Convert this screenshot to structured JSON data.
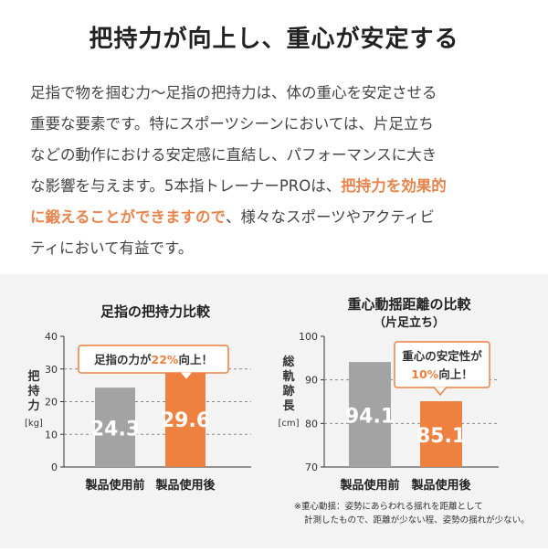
{
  "header": {
    "title": "把持力が向上し、重心が安定する"
  },
  "body": {
    "line1": "足指で物を掴む力〜足指の把持力は、体の重心を安定させる",
    "line2": "重要な要素です。特にスポーツシーンにおいては、片足立ち",
    "line3": "などの動作における安定感に直結し、パフォーマンスに大き",
    "line4_pre": "な影響を与えます。5本指トレーナーPROは、",
    "line4_hl": "把持力を効果的",
    "line5_hl": "に鍛えることができますので",
    "line5_post": "、様々なスポーツやアクティビ",
    "line6": "ティにおいて有益です。",
    "highlight_color": "#e8844c"
  },
  "chart_data": [
    {
      "type": "bar",
      "title": "足指の把持力比較",
      "ylabel": "把持力",
      "yunit": "[kg]",
      "categories": [
        "製品使用前",
        "製品使用後"
      ],
      "values": [
        24.3,
        29.6
      ],
      "value_labels": [
        "24.3",
        "29.6"
      ],
      "ylim": [
        0,
        40
      ],
      "yticks": [
        "0",
        "10",
        "20",
        "30",
        "40"
      ],
      "callout_pre": "足指の力が",
      "callout_hl": "22%",
      "callout_post": "向上！",
      "colors": [
        "#a3a3a3",
        "#ee8040"
      ]
    },
    {
      "type": "bar",
      "title": "重心動揺距離の比較",
      "subtitle": "（片足立ち）",
      "ylabel": "総軌跡長",
      "yunit": "[cm]",
      "categories": [
        "製品使用前",
        "製品使用後"
      ],
      "values": [
        94.1,
        85.1
      ],
      "value_labels": [
        "94.1",
        "85.1"
      ],
      "ylim": [
        70,
        100
      ],
      "yticks": [
        "70",
        "80",
        "90",
        "100"
      ],
      "callout_line1": "重心の安定性が",
      "callout_hl": "10%",
      "callout_post": "向上！",
      "colors": [
        "#a3a3a3",
        "#ee8040"
      ]
    }
  ],
  "footnote": {
    "line1": "※重心動揺：姿勢にあらわれる揺れを距離として",
    "line2": "計測したもので、距離が少ない程、姿勢の揺れが少ない。"
  }
}
